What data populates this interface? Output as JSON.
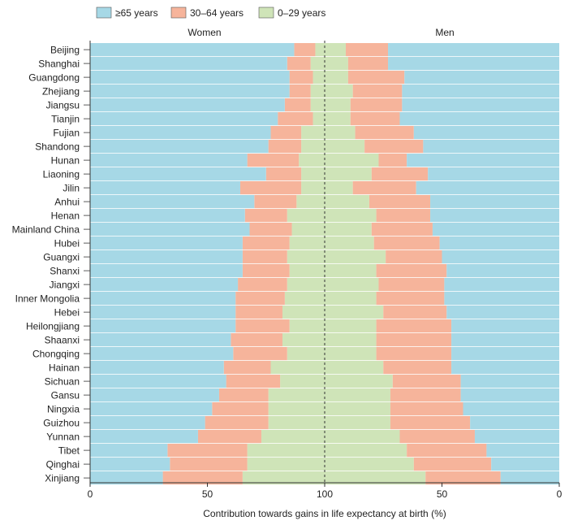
{
  "chart_data": {
    "type": "bar",
    "orientation": "horizontal",
    "stacked": true,
    "layout": "back-to-back (Women left, Men right), each side stacked to 100%",
    "panels": [
      "Women",
      "Men"
    ],
    "xlabel": "Contribution towards gains in life expectancy at birth (%)",
    "x_ticks_left": [
      "0",
      "50",
      "100"
    ],
    "x_ticks_right": [
      "50",
      "0"
    ],
    "xlim": [
      0,
      100
    ],
    "grid": false,
    "legend_position": "top-left",
    "center_line": "dashed",
    "colors": {
      "age65": "#a6d8e6",
      "age30_64": "#f6b49b",
      "age0_29": "#cfe4b8"
    },
    "legend": [
      {
        "key": "age65",
        "label": "≥65 years"
      },
      {
        "key": "age30_64",
        "label": "30–64 years"
      },
      {
        "key": "age0_29",
        "label": "0–29 years"
      }
    ],
    "stack_order_from_center": [
      "age0_29",
      "age30_64",
      "age65"
    ],
    "categories": [
      "Beijing",
      "Shanghai",
      "Guangdong",
      "Zhejiang",
      "Jiangsu",
      "Tianjin",
      "Fujian",
      "Shandong",
      "Hunan",
      "Liaoning",
      "Jilin",
      "Anhui",
      "Henan",
      "Mainland China",
      "Hubei",
      "Guangxi",
      "Shanxi",
      "Jiangxi",
      "Inner Mongolia",
      "Hebei",
      "Heilongjiang",
      "Shaanxi",
      "Chongqing",
      "Hainan",
      "Sichuan",
      "Gansu",
      "Ningxia",
      "Guizhou",
      "Yunnan",
      "Tibet",
      "Qinghai",
      "Xinjiang"
    ],
    "series": {
      "women": {
        "age0_29": [
          4,
          6,
          5,
          6,
          6,
          5,
          10,
          10,
          11,
          10,
          10,
          12,
          16,
          14,
          15,
          16,
          15,
          16,
          17,
          18,
          15,
          18,
          16,
          23,
          19,
          24,
          24,
          24,
          27,
          33,
          33,
          35
        ],
        "age30_64": [
          9,
          10,
          10,
          9,
          11,
          15,
          13,
          14,
          22,
          15,
          26,
          18,
          18,
          18,
          20,
          19,
          20,
          21,
          21,
          20,
          23,
          22,
          23,
          20,
          23,
          21,
          24,
          27,
          27,
          34,
          33,
          34
        ],
        "age65": [
          87,
          84,
          85,
          85,
          83,
          80,
          77,
          76,
          67,
          75,
          64,
          70,
          66,
          68,
          65,
          65,
          65,
          63,
          62,
          62,
          62,
          60,
          61,
          57,
          58,
          55,
          52,
          49,
          46,
          33,
          34,
          31
        ]
      },
      "men": {
        "age0_29": [
          9,
          10,
          10,
          12,
          11,
          11,
          13,
          17,
          23,
          20,
          12,
          19,
          22,
          20,
          21,
          26,
          22,
          23,
          22,
          25,
          22,
          22,
          22,
          25,
          29,
          28,
          28,
          28,
          32,
          35,
          38,
          43
        ],
        "age30_64": [
          18,
          17,
          24,
          21,
          22,
          21,
          25,
          25,
          12,
          24,
          27,
          26,
          23,
          26,
          28,
          24,
          30,
          28,
          29,
          27,
          32,
          32,
          32,
          29,
          29,
          30,
          31,
          34,
          32,
          34,
          33,
          32
        ],
        "age65": [
          73,
          73,
          66,
          67,
          67,
          68,
          62,
          58,
          65,
          56,
          61,
          55,
          55,
          54,
          51,
          50,
          48,
          49,
          49,
          48,
          46,
          46,
          46,
          46,
          42,
          42,
          41,
          38,
          36,
          31,
          29,
          25
        ]
      }
    }
  }
}
